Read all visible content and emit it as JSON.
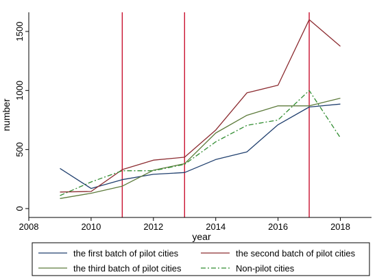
{
  "chart_data": {
    "type": "line",
    "xlabel": "year",
    "ylabel": "number",
    "xlim": [
      2008,
      2019
    ],
    "ylim": [
      0,
      1600
    ],
    "x_ticks": [
      "2008",
      "2010",
      "2012",
      "2014",
      "2016",
      "2018"
    ],
    "y_ticks": [
      "0",
      "500",
      "1000",
      "1500"
    ],
    "grid": false,
    "legend_position": "bottom",
    "reference_lines_x": [
      2011,
      2013,
      2017
    ],
    "reference_line_color": "#c8102e",
    "series": [
      {
        "name": "the first batch of pilot cities",
        "color": "#1f3f6e",
        "style": "solid",
        "x": [
          2009,
          2010,
          2011,
          2012,
          2013,
          2014,
          2015,
          2016,
          2017,
          2018
        ],
        "values": [
          340,
          170,
          245,
          290,
          305,
          415,
          480,
          710,
          860,
          885
        ]
      },
      {
        "name": "the second  batch of pilot cities",
        "color": "#8b2a2f",
        "style": "solid",
        "x": [
          2009,
          2010,
          2011,
          2012,
          2013,
          2014,
          2015,
          2016,
          2017,
          2018
        ],
        "values": [
          140,
          145,
          330,
          410,
          435,
          665,
          980,
          1045,
          1600,
          1375
        ]
      },
      {
        "name": "the third batch of pilot cities",
        "color": "#5c7a3a",
        "style": "solid",
        "x": [
          2009,
          2010,
          2011,
          2012,
          2013,
          2014,
          2015,
          2016,
          2017,
          2018
        ],
        "values": [
          85,
          130,
          190,
          325,
          380,
          640,
          790,
          870,
          870,
          935
        ]
      },
      {
        "name": "Non-pilot cities",
        "color": "#2e8b2e",
        "style": "dashdot",
        "x": [
          2009,
          2010,
          2011,
          2012,
          2013,
          2014,
          2015,
          2016,
          2017,
          2018
        ],
        "values": [
          110,
          225,
          320,
          320,
          375,
          565,
          705,
          750,
          1000,
          600
        ]
      }
    ]
  }
}
